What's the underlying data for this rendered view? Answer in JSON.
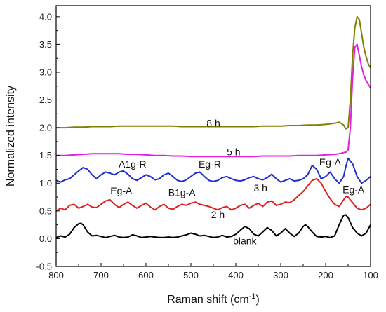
{
  "chart_data": {
    "type": "line",
    "xlabel": "Raman shift (cm",
    "xlabel_sup": "-1",
    "xlabel_end": ")",
    "ylabel": "Normalized intensity",
    "xlim": [
      800,
      100
    ],
    "ylim": [
      -0.5,
      4.2
    ],
    "x_reversed": true,
    "xticks": [
      800,
      700,
      600,
      500,
      400,
      300,
      200,
      100
    ],
    "yticks": [
      -0.5,
      0.0,
      0.5,
      1.0,
      1.5,
      2.0,
      2.5,
      3.0,
      3.5,
      4.0
    ],
    "ytick_labels": [
      "-0.5",
      "0.0",
      "0.5",
      "1.0",
      "1.5",
      "2.0",
      "2.5",
      "3.0",
      "3.5",
      "4.0"
    ],
    "grid": false,
    "legend": "none",
    "series": [
      {
        "name": "blank",
        "color": "#000000",
        "x": [
          800,
          790,
          780,
          770,
          760,
          750,
          745,
          740,
          730,
          720,
          710,
          700,
          690,
          680,
          670,
          660,
          650,
          640,
          630,
          620,
          610,
          600,
          590,
          580,
          570,
          560,
          550,
          540,
          530,
          520,
          510,
          500,
          490,
          480,
          470,
          460,
          450,
          440,
          430,
          420,
          410,
          400,
          390,
          380,
          370,
          360,
          350,
          340,
          330,
          320,
          310,
          300,
          290,
          280,
          270,
          260,
          250,
          245,
          240,
          230,
          220,
          210,
          200,
          190,
          180,
          175,
          170,
          160,
          155,
          150,
          140,
          130,
          120,
          110,
          100
        ],
        "y": [
          0.02,
          0.05,
          0.03,
          0.08,
          0.2,
          0.27,
          0.28,
          0.25,
          0.12,
          0.05,
          0.06,
          0.04,
          0.02,
          0.04,
          0.06,
          0.03,
          0.02,
          0.03,
          0.07,
          0.05,
          0.02,
          0.03,
          0.04,
          0.03,
          0.02,
          0.02,
          0.03,
          0.02,
          0.03,
          0.05,
          0.07,
          0.1,
          0.08,
          0.05,
          0.06,
          0.04,
          0.02,
          0.03,
          0.06,
          0.03,
          0.04,
          0.08,
          0.15,
          0.22,
          0.18,
          0.08,
          0.05,
          0.12,
          0.2,
          0.15,
          0.05,
          0.1,
          0.18,
          0.1,
          0.04,
          0.1,
          0.22,
          0.25,
          0.22,
          0.12,
          0.04,
          0.03,
          0.04,
          0.02,
          0.05,
          0.15,
          0.25,
          0.42,
          0.43,
          0.38,
          0.2,
          0.1,
          0.05,
          0.1,
          0.25
        ]
      },
      {
        "name": "2 h",
        "color": "#e02020",
        "x": [
          800,
          790,
          780,
          770,
          760,
          750,
          740,
          730,
          720,
          710,
          700,
          690,
          680,
          670,
          660,
          650,
          640,
          630,
          620,
          610,
          600,
          590,
          580,
          570,
          560,
          550,
          540,
          530,
          520,
          510,
          500,
          490,
          480,
          470,
          460,
          450,
          440,
          430,
          420,
          410,
          400,
          390,
          380,
          370,
          360,
          350,
          340,
          330,
          320,
          310,
          300,
          290,
          280,
          270,
          260,
          250,
          240,
          230,
          220,
          210,
          200,
          190,
          180,
          170,
          160,
          155,
          150,
          140,
          130,
          120,
          110,
          100
        ],
        "y": [
          0.5,
          0.55,
          0.52,
          0.6,
          0.62,
          0.55,
          0.58,
          0.62,
          0.57,
          0.56,
          0.62,
          0.68,
          0.7,
          0.62,
          0.56,
          0.62,
          0.66,
          0.6,
          0.55,
          0.6,
          0.64,
          0.57,
          0.52,
          0.58,
          0.62,
          0.55,
          0.53,
          0.58,
          0.62,
          0.6,
          0.64,
          0.66,
          0.62,
          0.6,
          0.58,
          0.55,
          0.52,
          0.56,
          0.58,
          0.52,
          0.55,
          0.6,
          0.62,
          0.55,
          0.6,
          0.64,
          0.58,
          0.66,
          0.68,
          0.6,
          0.62,
          0.66,
          0.65,
          0.7,
          0.78,
          0.85,
          0.95,
          1.05,
          1.08,
          1.0,
          0.85,
          0.72,
          0.62,
          0.58,
          0.7,
          0.76,
          0.75,
          0.65,
          0.55,
          0.52,
          0.55,
          0.62
        ]
      },
      {
        "name": "3 h",
        "color": "#1f2fd0",
        "x": [
          800,
          790,
          780,
          770,
          760,
          750,
          740,
          730,
          720,
          710,
          700,
          690,
          680,
          670,
          660,
          650,
          640,
          630,
          620,
          610,
          600,
          590,
          580,
          570,
          560,
          550,
          540,
          530,
          520,
          510,
          500,
          490,
          480,
          470,
          460,
          450,
          440,
          430,
          420,
          410,
          400,
          390,
          380,
          370,
          360,
          350,
          340,
          330,
          320,
          310,
          300,
          290,
          280,
          270,
          260,
          250,
          240,
          230,
          220,
          210,
          200,
          190,
          180,
          170,
          160,
          155,
          150,
          140,
          130,
          120,
          110,
          100
        ],
        "y": [
          1.05,
          1.02,
          1.06,
          1.08,
          1.15,
          1.22,
          1.28,
          1.25,
          1.15,
          1.08,
          1.15,
          1.2,
          1.18,
          1.15,
          1.2,
          1.22,
          1.16,
          1.08,
          1.05,
          1.1,
          1.15,
          1.12,
          1.06,
          1.08,
          1.15,
          1.18,
          1.12,
          1.05,
          1.03,
          1.06,
          1.12,
          1.18,
          1.2,
          1.12,
          1.05,
          1.03,
          1.05,
          1.1,
          1.12,
          1.08,
          1.05,
          1.04,
          1.06,
          1.1,
          1.12,
          1.08,
          1.06,
          1.1,
          1.16,
          1.08,
          1.02,
          1.05,
          1.08,
          1.04,
          1.05,
          1.08,
          1.15,
          1.32,
          1.25,
          1.08,
          1.12,
          1.2,
          1.08,
          1.0,
          1.12,
          1.3,
          1.45,
          1.35,
          1.12,
          1.0,
          1.05,
          1.12
        ]
      },
      {
        "name": "5 h",
        "color": "#e020e0",
        "x": [
          800,
          780,
          760,
          740,
          720,
          700,
          680,
          660,
          640,
          620,
          600,
          580,
          560,
          540,
          520,
          500,
          480,
          460,
          440,
          420,
          400,
          380,
          360,
          340,
          320,
          300,
          280,
          260,
          240,
          220,
          200,
          180,
          170,
          160,
          155,
          150,
          145,
          140,
          135,
          130,
          125,
          120,
          115,
          110,
          105,
          100
        ],
        "y": [
          1.5,
          1.5,
          1.51,
          1.52,
          1.53,
          1.53,
          1.53,
          1.53,
          1.52,
          1.52,
          1.51,
          1.5,
          1.5,
          1.49,
          1.49,
          1.48,
          1.48,
          1.48,
          1.48,
          1.48,
          1.48,
          1.48,
          1.48,
          1.49,
          1.49,
          1.49,
          1.49,
          1.5,
          1.5,
          1.5,
          1.51,
          1.52,
          1.53,
          1.55,
          1.56,
          1.6,
          2.0,
          2.9,
          3.45,
          3.5,
          3.3,
          3.1,
          2.95,
          2.85,
          2.78,
          2.72
        ]
      },
      {
        "name": "8 h",
        "color": "#808000",
        "x": [
          800,
          780,
          760,
          740,
          720,
          700,
          680,
          660,
          640,
          620,
          600,
          580,
          560,
          540,
          520,
          500,
          480,
          460,
          440,
          420,
          400,
          380,
          360,
          340,
          320,
          300,
          280,
          260,
          240,
          220,
          200,
          190,
          180,
          170,
          160,
          155,
          150,
          145,
          140,
          135,
          130,
          125,
          120,
          115,
          110,
          105,
          100
        ],
        "y": [
          2.0,
          2.0,
          2.01,
          2.01,
          2.02,
          2.02,
          2.02,
          2.03,
          2.03,
          2.03,
          2.03,
          2.03,
          2.03,
          2.03,
          2.02,
          2.02,
          2.02,
          2.02,
          2.02,
          2.02,
          2.02,
          2.02,
          2.02,
          2.03,
          2.03,
          2.03,
          2.04,
          2.04,
          2.05,
          2.05,
          2.06,
          2.07,
          2.08,
          2.1,
          2.05,
          1.98,
          2.0,
          2.5,
          3.3,
          3.8,
          4.0,
          3.95,
          3.7,
          3.45,
          3.28,
          3.15,
          3.08
        ]
      }
    ],
    "annotations": [
      {
        "text": "8 h",
        "x": 450,
        "y": 2.02
      },
      {
        "text": "5 h",
        "x": 405,
        "y": 1.5
      },
      {
        "text": "A1g-R",
        "x": 630,
        "y": 1.28
      },
      {
        "text": "Eg-R",
        "x": 458,
        "y": 1.28
      },
      {
        "text": "Eg-A",
        "x": 190,
        "y": 1.32
      },
      {
        "text": "Eg-A",
        "x": 655,
        "y": 0.8
      },
      {
        "text": "B1g-A",
        "x": 520,
        "y": 0.77
      },
      {
        "text": "3 h",
        "x": 345,
        "y": 0.85
      },
      {
        "text": "Eg-A",
        "x": 138,
        "y": 0.82
      },
      {
        "text": "2 h",
        "x": 440,
        "y": 0.37
      },
      {
        "text": "blank",
        "x": 380,
        "y": -0.1
      }
    ]
  }
}
